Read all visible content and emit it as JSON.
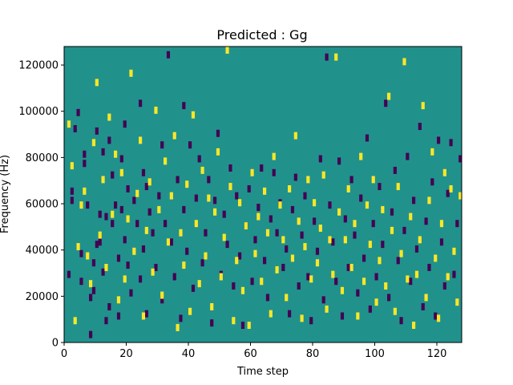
{
  "chart_data": {
    "type": "heatmap",
    "title": "Predicted : Gg",
    "xlabel": "Time step",
    "ylabel": "Frequency (Hz)",
    "xlim": [
      0,
      128
    ],
    "ylim": [
      0,
      128000
    ],
    "grid": false,
    "x_ticks": [
      0,
      20,
      40,
      60,
      80,
      100,
      120
    ],
    "y_ticks": [
      0,
      20000,
      40000,
      60000,
      80000,
      100000,
      120000
    ],
    "n_time_steps": 128,
    "n_frequency_bins": 128,
    "colors": {
      "background": "#21918c",
      "low": "#440154",
      "high": "#fde725"
    },
    "cells_low": [
      [
        1,
        30
      ],
      [
        2,
        66
      ],
      [
        2,
        62
      ],
      [
        3,
        93
      ],
      [
        4,
        100
      ],
      [
        5,
        39
      ],
      [
        5,
        27
      ],
      [
        6,
        82
      ],
      [
        6,
        78
      ],
      [
        7,
        60
      ],
      [
        8,
        20
      ],
      [
        8,
        4
      ],
      [
        9,
        35
      ],
      [
        9,
        23
      ],
      [
        10,
        92
      ],
      [
        10,
        43
      ],
      [
        11,
        56
      ],
      [
        11,
        44
      ],
      [
        12,
        83
      ],
      [
        12,
        31
      ],
      [
        13,
        55
      ],
      [
        13,
        10
      ],
      [
        14,
        88
      ],
      [
        14,
        16
      ],
      [
        15,
        73
      ],
      [
        15,
        52
      ],
      [
        16,
        60
      ],
      [
        17,
        37
      ],
      [
        17,
        12
      ],
      [
        18,
        80
      ],
      [
        18,
        58
      ],
      [
        19,
        95
      ],
      [
        19,
        45
      ],
      [
        20,
        67
      ],
      [
        20,
        34
      ],
      [
        21,
        22
      ],
      [
        22,
        62
      ],
      [
        23,
        52
      ],
      [
        24,
        104
      ],
      [
        24,
        28
      ],
      [
        25,
        74
      ],
      [
        25,
        41
      ],
      [
        26,
        68
      ],
      [
        26,
        13
      ],
      [
        27,
        57
      ],
      [
        28,
        48
      ],
      [
        29,
        33
      ],
      [
        30,
        64
      ],
      [
        31,
        86
      ],
      [
        31,
        19
      ],
      [
        32,
        52
      ],
      [
        33,
        125
      ],
      [
        34,
        44
      ],
      [
        35,
        29
      ],
      [
        36,
        71
      ],
      [
        37,
        11
      ],
      [
        38,
        103
      ],
      [
        38,
        58
      ],
      [
        39,
        40
      ],
      [
        40,
        86
      ],
      [
        41,
        24
      ],
      [
        42,
        63
      ],
      [
        43,
        80
      ],
      [
        44,
        35
      ],
      [
        45,
        48
      ],
      [
        46,
        71
      ],
      [
        47,
        9
      ],
      [
        48,
        62
      ],
      [
        49,
        91
      ],
      [
        50,
        30
      ],
      [
        51,
        56
      ],
      [
        52,
        43
      ],
      [
        53,
        76
      ],
      [
        54,
        25
      ],
      [
        55,
        64
      ],
      [
        56,
        38
      ],
      [
        57,
        8
      ],
      [
        58,
        51
      ],
      [
        59,
        67
      ],
      [
        60,
        27
      ],
      [
        61,
        45
      ],
      [
        62,
        59
      ],
      [
        63,
        76
      ],
      [
        64,
        36
      ],
      [
        65,
        20
      ],
      [
        66,
        54
      ],
      [
        67,
        74
      ],
      [
        68,
        48
      ],
      [
        69,
        61
      ],
      [
        70,
        33
      ],
      [
        71,
        41
      ],
      [
        72,
        13
      ],
      [
        73,
        58
      ],
      [
        74,
        72
      ],
      [
        75,
        25
      ],
      [
        76,
        47
      ],
      [
        77,
        64
      ],
      [
        78,
        29
      ],
      [
        79,
        10
      ],
      [
        80,
        53
      ],
      [
        81,
        40
      ],
      [
        82,
        80
      ],
      [
        83,
        19
      ],
      [
        84,
        124
      ],
      [
        85,
        60
      ],
      [
        86,
        44
      ],
      [
        87,
        27
      ],
      [
        88,
        79
      ],
      [
        89,
        12
      ],
      [
        90,
        54
      ],
      [
        91,
        33
      ],
      [
        92,
        71
      ],
      [
        93,
        47
      ],
      [
        94,
        22
      ],
      [
        95,
        63
      ],
      [
        96,
        37
      ],
      [
        97,
        89
      ],
      [
        98,
        15
      ],
      [
        99,
        52
      ],
      [
        100,
        29
      ],
      [
        101,
        68
      ],
      [
        102,
        43
      ],
      [
        103,
        104
      ],
      [
        104,
        20
      ],
      [
        105,
        57
      ],
      [
        106,
        75
      ],
      [
        107,
        36
      ],
      [
        108,
        10
      ],
      [
        109,
        49
      ],
      [
        110,
        81
      ],
      [
        111,
        27
      ],
      [
        112,
        62
      ],
      [
        113,
        41
      ],
      [
        114,
        94
      ],
      [
        115,
        16
      ],
      [
        116,
        53
      ],
      [
        117,
        33
      ],
      [
        118,
        70
      ],
      [
        119,
        12
      ],
      [
        120,
        88
      ],
      [
        121,
        44
      ],
      [
        122,
        25
      ],
      [
        123,
        65
      ],
      [
        124,
        87
      ],
      [
        125,
        30
      ],
      [
        126,
        52
      ],
      [
        127,
        80
      ]
    ],
    "cells_high": [
      [
        1,
        95
      ],
      [
        2,
        77
      ],
      [
        3,
        10
      ],
      [
        4,
        42
      ],
      [
        5,
        60
      ],
      [
        6,
        66
      ],
      [
        7,
        38
      ],
      [
        8,
        26
      ],
      [
        9,
        87
      ],
      [
        10,
        113
      ],
      [
        11,
        47
      ],
      [
        12,
        71
      ],
      [
        13,
        33
      ],
      [
        14,
        98
      ],
      [
        15,
        56
      ],
      [
        16,
        82
      ],
      [
        17,
        19
      ],
      [
        18,
        74
      ],
      [
        19,
        28
      ],
      [
        20,
        54
      ],
      [
        21,
        117
      ],
      [
        22,
        40
      ],
      [
        23,
        65
      ],
      [
        24,
        88
      ],
      [
        25,
        12
      ],
      [
        26,
        49
      ],
      [
        27,
        70
      ],
      [
        28,
        31
      ],
      [
        29,
        101
      ],
      [
        30,
        58
      ],
      [
        31,
        21
      ],
      [
        32,
        79
      ],
      [
        33,
        44
      ],
      [
        34,
        64
      ],
      [
        35,
        90
      ],
      [
        36,
        7
      ],
      [
        37,
        48
      ],
      [
        38,
        34
      ],
      [
        39,
        69
      ],
      [
        40,
        14
      ],
      [
        41,
        99
      ],
      [
        42,
        52
      ],
      [
        43,
        26
      ],
      [
        44,
        75
      ],
      [
        45,
        38
      ],
      [
        46,
        63
      ],
      [
        47,
        16
      ],
      [
        48,
        57
      ],
      [
        49,
        83
      ],
      [
        50,
        29
      ],
      [
        51,
        46
      ],
      [
        52,
        127
      ],
      [
        53,
        68
      ],
      [
        54,
        10
      ],
      [
        55,
        36
      ],
      [
        56,
        61
      ],
      [
        57,
        23
      ],
      [
        58,
        51
      ],
      [
        59,
        8
      ],
      [
        60,
        74
      ],
      [
        61,
        39
      ],
      [
        62,
        55
      ],
      [
        63,
        27
      ],
      [
        64,
        66
      ],
      [
        65,
        48
      ],
      [
        66,
        13
      ],
      [
        67,
        81
      ],
      [
        68,
        32
      ],
      [
        69,
        60
      ],
      [
        70,
        45
      ],
      [
        71,
        20
      ],
      [
        72,
        67
      ],
      [
        73,
        37
      ],
      [
        74,
        90
      ],
      [
        75,
        53
      ],
      [
        76,
        11
      ],
      [
        77,
        42
      ],
      [
        78,
        71
      ],
      [
        79,
        28
      ],
      [
        80,
        61
      ],
      [
        81,
        35
      ],
      [
        82,
        50
      ],
      [
        83,
        73
      ],
      [
        84,
        15
      ],
      [
        85,
        45
      ],
      [
        86,
        30
      ],
      [
        87,
        124
      ],
      [
        88,
        57
      ],
      [
        89,
        23
      ],
      [
        90,
        45
      ],
      [
        91,
        67
      ],
      [
        92,
        33
      ],
      [
        93,
        52
      ],
      [
        94,
        12
      ],
      [
        95,
        81
      ],
      [
        96,
        27
      ],
      [
        97,
        60
      ],
      [
        98,
        43
      ],
      [
        99,
        71
      ],
      [
        100,
        18
      ],
      [
        101,
        36
      ],
      [
        102,
        58
      ],
      [
        103,
        25
      ],
      [
        104,
        107
      ],
      [
        105,
        49
      ],
      [
        106,
        14
      ],
      [
        107,
        68
      ],
      [
        108,
        39
      ],
      [
        109,
        122
      ],
      [
        110,
        28
      ],
      [
        111,
        55
      ],
      [
        112,
        8
      ],
      [
        113,
        30
      ],
      [
        114,
        45
      ],
      [
        115,
        103
      ],
      [
        116,
        20
      ],
      [
        117,
        62
      ],
      [
        118,
        83
      ],
      [
        119,
        37
      ],
      [
        120,
        11
      ],
      [
        121,
        52
      ],
      [
        122,
        74
      ],
      [
        123,
        29
      ],
      [
        124,
        67
      ],
      [
        125,
        40
      ],
      [
        126,
        18
      ],
      [
        127,
        64
      ]
    ]
  }
}
